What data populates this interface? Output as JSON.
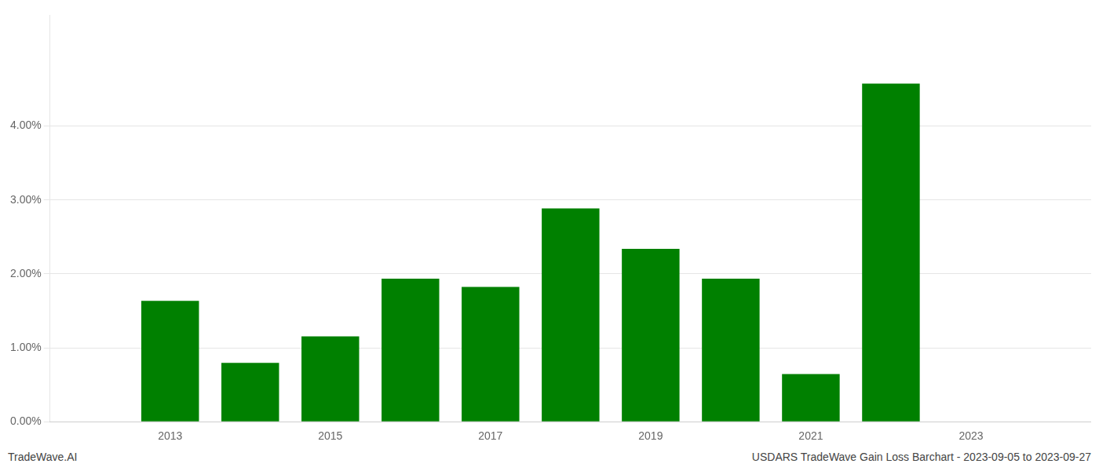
{
  "chart_data": {
    "type": "bar",
    "x": [
      2013,
      2014,
      2015,
      2016,
      2017,
      2018,
      2019,
      2020,
      2021,
      2022
    ],
    "values": [
      0.01635,
      0.00795,
      0.01155,
      0.01935,
      0.01825,
      0.02885,
      0.0234,
      0.01935,
      0.00645,
      0.04575
    ],
    "color": "#008000",
    "xlim": [
      2011.5,
      2024.5
    ],
    "xticks": [
      2013,
      2015,
      2017,
      2019,
      2021,
      2023
    ],
    "ylim": [
      0,
      0.055
    ],
    "yticks": [
      {
        "value": 0.0,
        "label": "0.00%"
      },
      {
        "value": 0.01,
        "label": "1.00%"
      },
      {
        "value": 0.02,
        "label": "2.00%"
      },
      {
        "value": 0.03,
        "label": "3.00%"
      },
      {
        "value": 0.04,
        "label": "4.00%"
      }
    ],
    "grid": "y",
    "annotations": [
      "TradeWave.AI",
      "USDARS TradeWave Gain Loss Barchart - 2023-09-05 to 2023-09-27"
    ]
  }
}
